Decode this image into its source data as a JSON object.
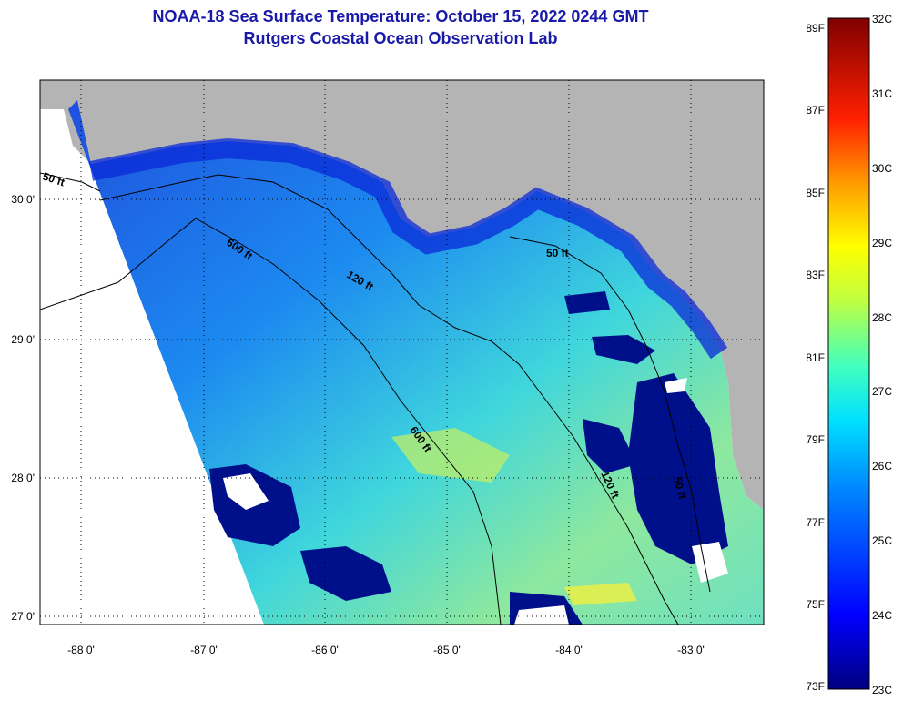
{
  "title_line1": "NOAA-18 Sea Surface Temperature:  October 15, 2022 0244 GMT",
  "title_line2": "Rutgers Coastal Ocean Observation Lab",
  "lon_labels": [
    "-88 0'",
    "-87 0'",
    "-86 0'",
    "-85 0'",
    "-84 0'",
    "-83 0'"
  ],
  "lat_labels": [
    "30 0'",
    "29 0'",
    "28 0'",
    "27 0'"
  ],
  "contour_labels": [
    "50 ft",
    "600 ft",
    "120 ft",
    "50 ft",
    "600 ft",
    "120 ft",
    "50 ft"
  ],
  "colorbar": {
    "fahrenheit": [
      "89F",
      "87F",
      "85F",
      "83F",
      "81F",
      "79F",
      "77F",
      "75F",
      "73F"
    ],
    "celsius": [
      "32C",
      "31C",
      "30C",
      "29C",
      "28C",
      "27C",
      "26C",
      "25C",
      "24C",
      "23C"
    ]
  },
  "colors": {
    "title": "#1a1aa8",
    "land": "#b4b4b4",
    "cold": "#00108a"
  }
}
